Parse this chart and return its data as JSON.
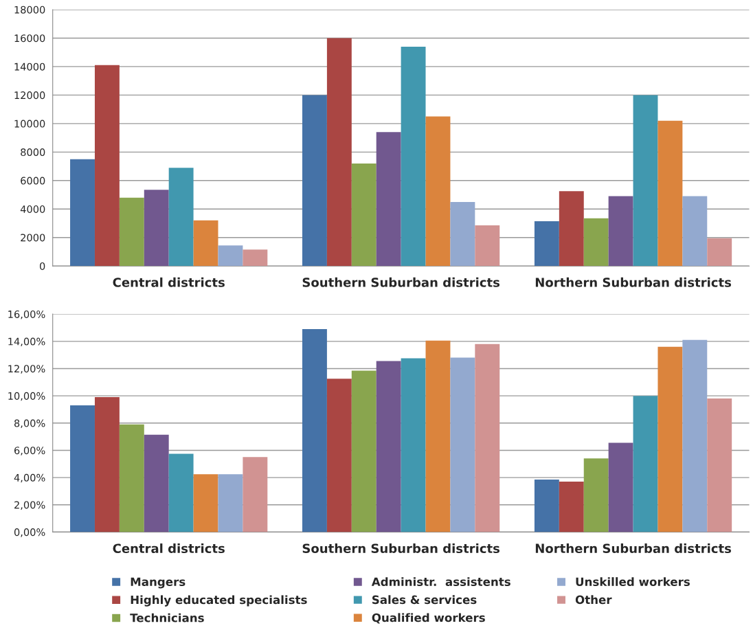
{
  "chart_data": [
    {
      "type": "bar",
      "categories": [
        "Central districts",
        "Southern Suburban districts",
        "Northern Suburban districts"
      ],
      "series": [
        {
          "color": "#4572a7",
          "values": [
            7500,
            12000,
            3150
          ]
        },
        {
          "color": "#aa4643",
          "values": [
            14100,
            16000,
            5250
          ]
        },
        {
          "color": "#89a54e",
          "values": [
            4800,
            7200,
            3350
          ]
        },
        {
          "color": "#71588f",
          "values": [
            5350,
            9400,
            4900
          ]
        },
        {
          "color": "#4198af",
          "values": [
            6900,
            15400,
            12000
          ]
        },
        {
          "color": "#db843d",
          "values": [
            3200,
            10500,
            10200
          ]
        },
        {
          "color": "#93a9cf",
          "values": [
            1450,
            4500,
            4900
          ]
        },
        {
          "color": "#d19392",
          "values": [
            1150,
            2850,
            1950
          ]
        }
      ],
      "ylim": [
        0,
        18000
      ],
      "yticks": [
        0,
        2000,
        4000,
        6000,
        8000,
        10000,
        12000,
        14000,
        16000,
        18000
      ],
      "grid": "y",
      "legend": false
    },
    {
      "type": "bar",
      "categories": [
        "Central districts",
        "Southern Suburban districts",
        "Northern Suburban districts"
      ],
      "series": [
        {
          "name": "Mangers",
          "color": "#4572a7",
          "values": [
            9.3,
            14.9,
            3.85
          ]
        },
        {
          "name": "Highly educated specialists",
          "color": "#aa4643",
          "values": [
            9.9,
            11.25,
            3.7
          ]
        },
        {
          "name": "Technicians",
          "color": "#89a54e",
          "values": [
            7.9,
            11.85,
            5.4
          ]
        },
        {
          "name": "Administr.  assistents",
          "color": "#71588f",
          "values": [
            7.15,
            12.55,
            6.55
          ]
        },
        {
          "name": "Sales & services",
          "color": "#4198af",
          "values": [
            5.75,
            12.75,
            10.0
          ]
        },
        {
          "name": "Qualified workers",
          "color": "#db843d",
          "values": [
            4.25,
            14.05,
            13.6
          ]
        },
        {
          "name": "Unskilled workers",
          "color": "#93a9cf",
          "values": [
            4.25,
            12.8,
            14.1
          ]
        },
        {
          "name": "Other",
          "color": "#d19392",
          "values": [
            5.5,
            13.8,
            9.8
          ]
        }
      ],
      "ylim": [
        0,
        16
      ],
      "yticks": [
        {
          "value": 0,
          "label": "0,00%"
        },
        {
          "value": 2,
          "label": "2,00%"
        },
        {
          "value": 4,
          "label": "4,00%"
        },
        {
          "value": 6,
          "label": "6,00%"
        },
        {
          "value": 8,
          "label": "8,00%"
        },
        {
          "value": 10,
          "label": "10,00%"
        },
        {
          "value": 12,
          "label": "12,00%"
        },
        {
          "value": 14,
          "label": "14,00%"
        },
        {
          "value": 16,
          "label": "16,00%"
        }
      ],
      "grid": "y",
      "legend": "bottom"
    }
  ]
}
